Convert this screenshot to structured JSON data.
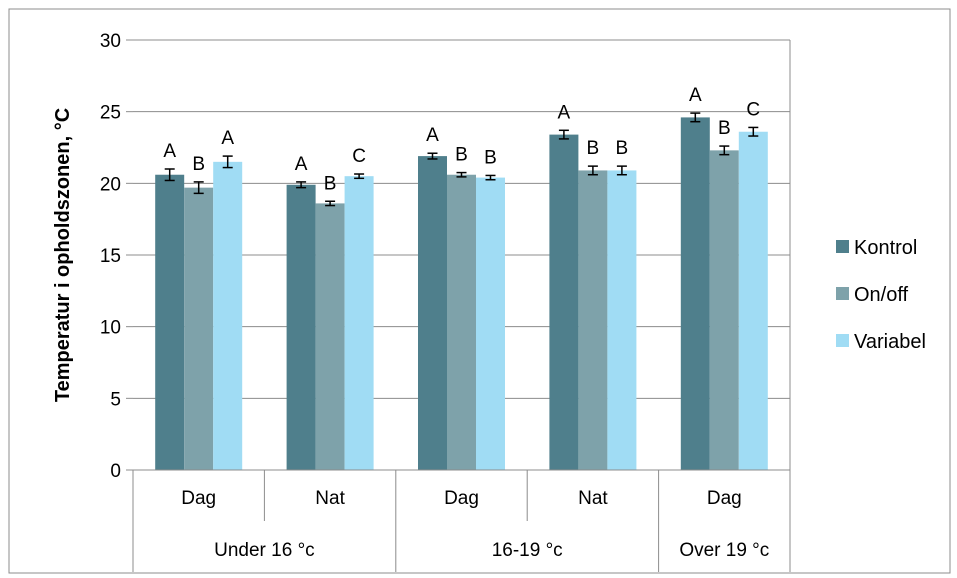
{
  "chart_data": {
    "type": "bar",
    "ylabel": "Temperatur i opholdszonen, °C",
    "xlabel": "",
    "ylim": [
      0,
      30
    ],
    "yticks": [
      0,
      5,
      10,
      15,
      20,
      25,
      30
    ],
    "grid": true,
    "legend_position": "right",
    "categories": [
      {
        "label": "Dag",
        "group": "Under 16 °c"
      },
      {
        "label": "Nat",
        "group": "Under 16 °c"
      },
      {
        "label": "Dag",
        "group": "16-19 °c"
      },
      {
        "label": "Nat",
        "group": "16-19 °c"
      },
      {
        "label": "Dag",
        "group": "Over 19 °c"
      }
    ],
    "groups": [
      {
        "label": "Under 16 °c",
        "span": 2
      },
      {
        "label": "16-19 °c",
        "span": 2
      },
      {
        "label": "Over 19 °c",
        "span": 1
      }
    ],
    "series": [
      {
        "name": "Kontrol",
        "color": "#4f7f8c",
        "values": [
          20.6,
          19.9,
          21.9,
          23.4,
          24.6
        ],
        "errors": [
          0.4,
          0.2,
          0.2,
          0.3,
          0.3
        ],
        "significance": [
          "A",
          "A",
          "A",
          "A",
          "A"
        ]
      },
      {
        "name": "On/off",
        "color": "#7ea2aa",
        "values": [
          19.7,
          18.6,
          20.6,
          20.9,
          22.3
        ],
        "errors": [
          0.4,
          0.15,
          0.15,
          0.3,
          0.3
        ],
        "significance": [
          "B",
          "B",
          "B",
          "B",
          "B"
        ]
      },
      {
        "name": "Variabel",
        "color": "#a0dcf4",
        "values": [
          21.5,
          20.5,
          20.4,
          20.9,
          23.6
        ],
        "errors": [
          0.4,
          0.15,
          0.15,
          0.3,
          0.3
        ],
        "significance": [
          "A",
          "C",
          "B",
          "B",
          "C"
        ]
      }
    ]
  }
}
